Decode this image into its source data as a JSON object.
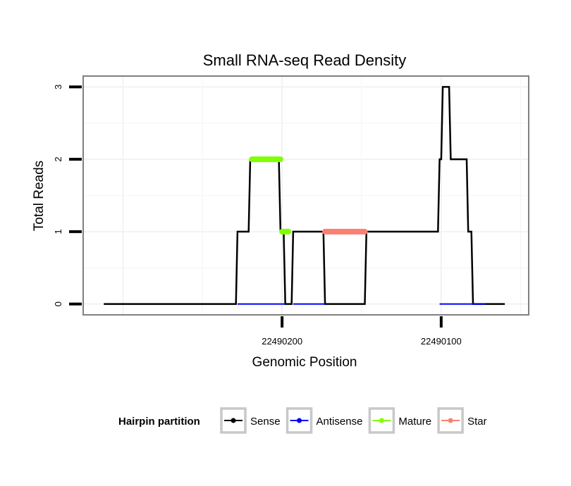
{
  "chart_data": {
    "type": "line",
    "title": "Small RNA-seq Read Density",
    "xlabel": "Genomic Position",
    "ylabel": "Total Reads",
    "xlim": [
      22490325,
      22490045
    ],
    "ylim": [
      -0.15,
      3.15
    ],
    "x_reversed": true,
    "x_ticks": [
      22490200,
      22490100
    ],
    "x_tick_labels": [
      "22490200",
      "22490100"
    ],
    "y_ticks": [
      0,
      1,
      2,
      3
    ],
    "y_tick_labels": [
      "0",
      "1",
      "2",
      "3"
    ],
    "grid": true,
    "legend_position": "bottom",
    "legend_title": "Hairpin partition",
    "series": [
      {
        "name": "Sense",
        "color": "#000000",
        "style": "line",
        "x": [
          22490312,
          22490229,
          22490228,
          22490221,
          22490220,
          22490202,
          22490201,
          22490199,
          22490198,
          22490194,
          22490193,
          22490174,
          22490173,
          22490148,
          22490147,
          22490102,
          22490101,
          22490100,
          22490099,
          22490095,
          22490094,
          22490084,
          22490083,
          22490081,
          22490080,
          22490073,
          22490072,
          22490060
        ],
        "y": [
          0,
          0,
          1,
          1,
          2,
          2,
          1,
          1,
          0,
          0,
          1,
          1,
          0,
          0,
          1,
          1,
          2,
          2,
          3,
          3,
          2,
          2,
          1,
          1,
          0,
          0,
          0,
          0
        ]
      },
      {
        "name": "Antisense",
        "color": "#0000ff",
        "style": "line",
        "segments": [
          [
            22490228,
            22490198,
            0
          ],
          [
            22490193,
            22490173,
            0
          ],
          [
            22490101,
            22490072,
            0
          ]
        ]
      },
      {
        "name": "Mature",
        "color": "#80ff00",
        "style": "thick",
        "segments": [
          [
            22490219,
            22490201,
            2
          ],
          [
            22490200,
            22490196,
            1
          ]
        ]
      },
      {
        "name": "Star",
        "color": "#fa8072",
        "style": "thick",
        "segments": [
          [
            22490173,
            22490148,
            1
          ]
        ]
      }
    ]
  },
  "legend": {
    "title": "Hairpin partition",
    "items": [
      {
        "label": "Sense",
        "color": "#000000"
      },
      {
        "label": "Antisense",
        "color": "#0000ff"
      },
      {
        "label": "Mature",
        "color": "#80ff00"
      },
      {
        "label": "Star",
        "color": "#fa8072"
      }
    ]
  }
}
